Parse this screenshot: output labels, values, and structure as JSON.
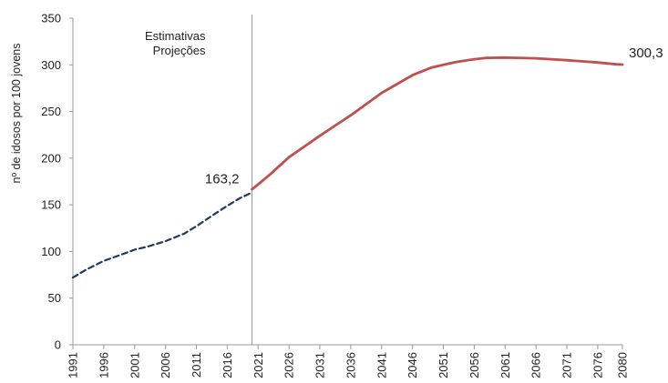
{
  "chart_data": {
    "type": "line",
    "title": "",
    "xlabel": "",
    "ylabel": "nº de idosos por 100 jovens",
    "ylim": [
      0,
      350
    ],
    "yticks": [
      "0",
      "50",
      "100",
      "150",
      "200",
      "250",
      "300",
      "350"
    ],
    "xlim": [
      1991,
      2080
    ],
    "xticks": [
      "1991",
      "1996",
      "2001",
      "2006",
      "2011",
      "2016",
      "2021",
      "2026",
      "2031",
      "2036",
      "2041",
      "2046",
      "2051",
      "2056",
      "2061",
      "2066",
      "2071",
      "2076",
      "2080"
    ],
    "grid": false,
    "divider_x": 2020,
    "period_labels": [
      "Estimativas",
      "Projeções"
    ],
    "series": [
      {
        "style": "dashed",
        "color": "#1f3864",
        "x": [
          1991,
          1993,
          1996,
          1999,
          2001,
          2003,
          2006,
          2009,
          2011,
          2013,
          2016,
          2018,
          2020
        ],
        "y": [
          72,
          80,
          90,
          97,
          102,
          105,
          111,
          119,
          127,
          136,
          149,
          157,
          163.2
        ]
      },
      {
        "style": "solid",
        "color": "#c0504d",
        "x": [
          2020,
          2021,
          2023,
          2026,
          2031,
          2036,
          2041,
          2046,
          2049,
          2051,
          2053,
          2056,
          2058,
          2061,
          2063,
          2066,
          2071,
          2076,
          2079,
          2080
        ],
        "y": [
          166.6,
          172,
          183,
          201,
          224,
          246,
          270,
          289,
          297,
          300,
          303,
          306,
          307.5,
          307.8,
          307.5,
          307,
          305,
          302.5,
          300.6,
          300.3
        ]
      }
    ],
    "annotations": [
      {
        "text": "163,2",
        "x": 2020,
        "y": 163.2
      },
      {
        "text": "300,3",
        "x": 2080,
        "y": 300.3
      }
    ]
  }
}
